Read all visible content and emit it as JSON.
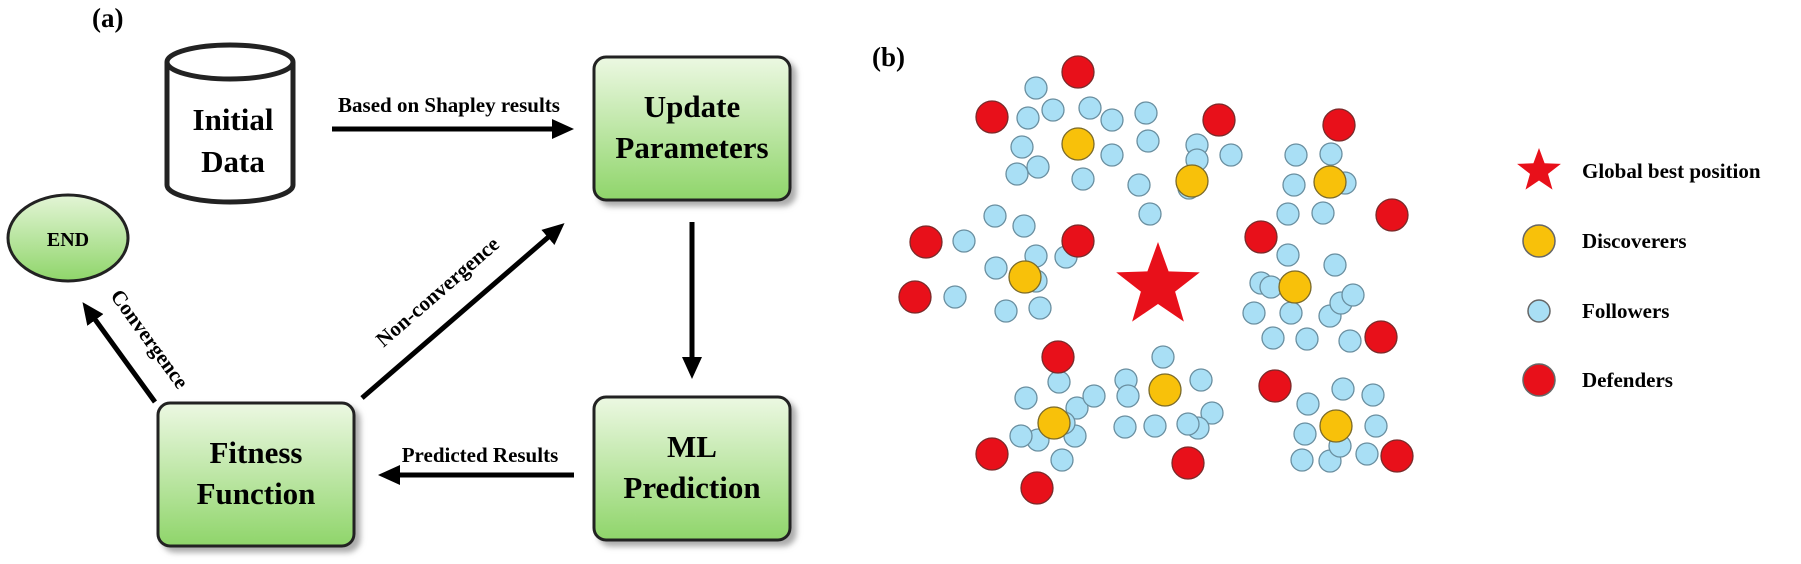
{
  "panel_a": {
    "label": "(a)",
    "initial_data": [
      "Initial",
      "Data"
    ],
    "update_parameters": [
      "Update",
      "Parameters"
    ],
    "ml_prediction": [
      "ML",
      "Prediction"
    ],
    "fitness_function": [
      "Fitness",
      "Function"
    ],
    "end": "END",
    "edges": {
      "shapley": "Based on Shapley results",
      "predicted": "Predicted Results",
      "nonconvergence": "Non-convergence",
      "convergence": "Convergence"
    }
  },
  "panel_b": {
    "label": "(b)",
    "legend": {
      "global_best": "Global best position",
      "discoverers": "Discoverers",
      "followers": "Followers",
      "defenders": "Defenders"
    },
    "colors": {
      "defender": "#e8101a",
      "discoverer": "#f8c10a",
      "follower": "#a9dff5",
      "star": "#e8101a",
      "box_fill_top": "#ecf8e2",
      "box_fill_bottom": "#8fd56a"
    }
  }
}
